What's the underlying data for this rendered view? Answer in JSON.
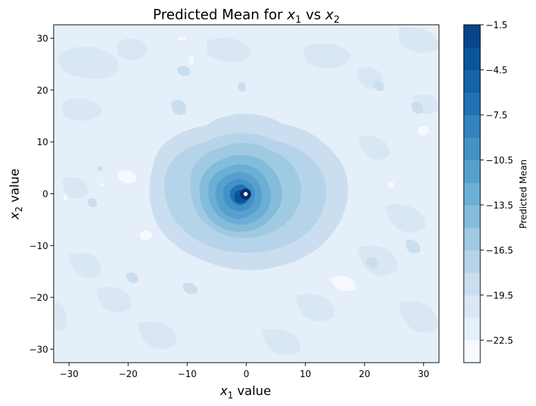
{
  "chart_data": {
    "type": "heatmap",
    "subtype": "filled-contour",
    "title": {
      "prefix": "Predicted Mean for ",
      "v1": "x",
      "v1_sub": "1",
      "mid": " vs ",
      "v2": "x",
      "v2_sub": "2"
    },
    "xlabel": {
      "var": "x",
      "sub": "1",
      "text": " value"
    },
    "ylabel": {
      "var": "x",
      "sub": "2",
      "text": " value"
    },
    "xlim": [
      -32.6,
      32.6
    ],
    "ylim": [
      -32.6,
      32.6
    ],
    "xticks": [
      -30,
      -20,
      -10,
      0,
      10,
      20,
      30
    ],
    "xtick_labels": [
      "−30",
      "−20",
      "−10",
      "0",
      "10",
      "20",
      "30"
    ],
    "yticks": [
      -30,
      -20,
      -10,
      0,
      10,
      20,
      30
    ],
    "ytick_labels": [
      "−30",
      "−20",
      "−10",
      "0",
      "10",
      "20",
      "30"
    ],
    "colorbar": {
      "label": "Predicted Mean",
      "colormap": "Blues_r",
      "range": [
        -24.0,
        -1.5
      ],
      "ticks": [
        -1.5,
        -4.5,
        -7.5,
        -10.5,
        -13.5,
        -16.5,
        -19.5,
        -22.5
      ],
      "tick_labels": [
        "−1.5",
        "−4.5",
        "−7.5",
        "−10.5",
        "−13.5",
        "−16.5",
        "−19.5",
        "−22.5"
      ],
      "levels": [
        -24.0,
        -22.5,
        -21.0,
        -19.5,
        -18.0,
        -16.5,
        -15.0,
        -13.5,
        -12.0,
        -10.5,
        -9.0,
        -7.5,
        -6.0,
        -4.5,
        -3.0,
        -1.5
      ],
      "level_colors": [
        "#f6faff",
        "#e5eff9",
        "#d9e7f5",
        "#cadef0",
        "#b6d4e9",
        "#a0cae1",
        "#84bcdb",
        "#6baed6",
        "#57a0ce",
        "#4292c6",
        "#3383be",
        "#2171b5",
        "#1563ab",
        "#0a549e",
        "#08458a",
        "#08306b"
      ]
    },
    "peak": {
      "x": 0,
      "y": 0,
      "value": -1.5
    },
    "baseline_value": -21.5
  }
}
